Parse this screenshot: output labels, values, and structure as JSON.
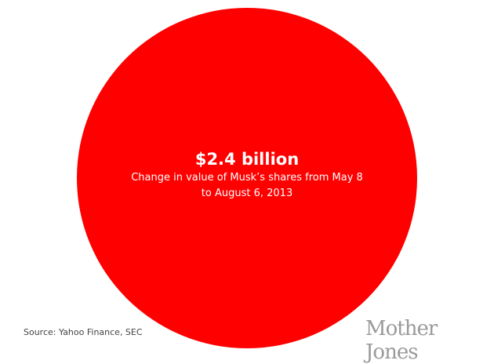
{
  "chart_data": {
    "type": "bubble",
    "values": [
      2.4
    ],
    "value_label": "$2.4 billion",
    "description_lines": [
      "Change in value of Musk’s shares from May 8",
      "to August 6, 2013"
    ],
    "unit": "billion USD",
    "color": "#ff0000"
  },
  "source": "Source: Yahoo Finance, SEC",
  "logo": "Mother Jones"
}
